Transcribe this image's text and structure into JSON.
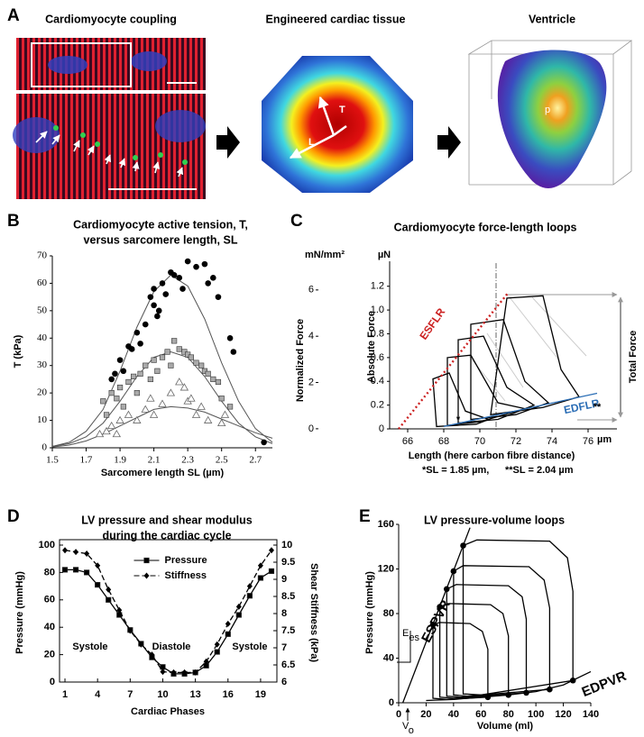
{
  "panel_a": {
    "label": "A",
    "titles": [
      "Cardiomyocyte coupling",
      "Engineered cardiac tissue",
      "Ventricle"
    ],
    "tissue_labels": [
      "T",
      "L"
    ],
    "ventricle_label": "p"
  },
  "chart_data": [
    {
      "label": "B",
      "type": "scatter",
      "title": [
        "Cardiomyocyte active tension, T,",
        "versus sarcomere length, SL"
      ],
      "xlabel": "Sarcomere length SL (µm)",
      "ylabel": "T (kPa)",
      "xlim": [
        1.5,
        2.8
      ],
      "ylim": [
        0,
        70
      ],
      "xticks": [
        1.5,
        1.7,
        1.9,
        2.1,
        2.3,
        2.5,
        2.7
      ],
      "yticks": [
        0,
        10,
        20,
        30,
        40,
        50,
        60,
        70
      ],
      "series": [
        {
          "marker": "circle",
          "color": "#000000",
          "x": [
            1.85,
            1.87,
            1.9,
            1.92,
            1.95,
            1.97,
            2.0,
            2.02,
            2.05,
            2.08,
            2.1,
            2.12,
            2.1,
            2.13,
            2.15,
            2.17,
            2.2,
            2.22,
            2.25,
            2.27,
            2.3,
            2.35,
            2.4,
            2.42,
            2.45,
            2.48,
            2.55,
            2.57,
            2.75
          ],
          "values": [
            25,
            27,
            32,
            28,
            37,
            36,
            42,
            38,
            45,
            55,
            52,
            48,
            58,
            50,
            60,
            56,
            64,
            63,
            62,
            58,
            68,
            66,
            67,
            60,
            62,
            55,
            40,
            35,
            2
          ]
        },
        {
          "marker": "square",
          "color": "#aaaaaa",
          "x": [
            1.8,
            1.82,
            1.85,
            1.88,
            1.9,
            1.92,
            1.95,
            1.98,
            2.0,
            2.02,
            2.05,
            2.08,
            2.1,
            2.12,
            2.15,
            2.18,
            2.2,
            2.22,
            2.25,
            2.28,
            2.3,
            2.32,
            2.35,
            2.38,
            2.4,
            2.42,
            2.45,
            2.48,
            2.5,
            2.55
          ],
          "values": [
            17,
            12,
            20,
            18,
            22,
            15,
            24,
            26,
            20,
            27,
            30,
            25,
            32,
            28,
            33,
            35,
            30,
            39,
            36,
            35,
            34,
            33,
            31,
            30,
            28,
            27,
            25,
            24,
            18,
            15
          ]
        },
        {
          "marker": "triangle",
          "color": "#666666",
          "x": [
            1.78,
            1.82,
            1.85,
            1.88,
            1.9,
            1.95,
            2.0,
            2.05,
            2.08,
            2.1,
            2.15,
            2.2,
            2.25,
            2.28,
            2.3,
            2.32,
            2.35,
            2.38,
            2.42,
            2.5,
            2.52
          ],
          "values": [
            5,
            6,
            8,
            5,
            10,
            12,
            10,
            14,
            18,
            12,
            16,
            20,
            24,
            22,
            17,
            18,
            12,
            15,
            10,
            9,
            12
          ]
        }
      ],
      "curves": [
        {
          "color": "#555555",
          "x": [
            1.5,
            1.6,
            1.7,
            1.8,
            1.9,
            2.0,
            2.1,
            2.2,
            2.3,
            2.4,
            2.5,
            2.6,
            2.7,
            2.8
          ],
          "values": [
            0.5,
            2,
            6,
            14,
            28,
            44,
            57,
            63,
            59,
            47,
            31,
            17,
            7,
            2
          ]
        },
        {
          "color": "#555555",
          "x": [
            1.5,
            1.6,
            1.7,
            1.8,
            1.9,
            2.0,
            2.1,
            2.2,
            2.3,
            2.4,
            2.5,
            2.6,
            2.7,
            2.8
          ],
          "values": [
            0.5,
            1.5,
            4,
            9,
            17,
            26,
            33,
            35,
            33,
            26,
            17,
            9,
            4,
            1.5
          ]
        },
        {
          "color": "#555555",
          "x": [
            1.5,
            1.6,
            1.7,
            1.8,
            1.9,
            2.0,
            2.1,
            2.2,
            2.3,
            2.4,
            2.5,
            2.6,
            2.7,
            2.8
          ],
          "values": [
            0.3,
            1,
            2.5,
            5,
            8,
            11,
            14,
            15,
            14.5,
            13,
            10.5,
            8,
            5.5,
            3.5
          ]
        }
      ]
    },
    {
      "label": "C",
      "type": "line",
      "title": "Cardiomyocyte force-length loops",
      "xlabel": "Length (here carbon fibre distance)",
      "xunit": "µm",
      "ylabel": "Absolute Force",
      "yunit": "µN",
      "y2label": "Normalized Force",
      "y2unit": "mN/mm²",
      "xlim": [
        65,
        78
      ],
      "ylim": [
        -0.03,
        1.41
      ],
      "y2lim": [
        -0.16,
        7.24
      ],
      "xticks": [
        66,
        68,
        70,
        72,
        74,
        76
      ],
      "yticks": [
        0,
        0.2,
        0.4,
        0.6,
        0.8,
        {
          "value": 1,
          "label": "1.0"
        },
        1.2
      ],
      "y2ticks": [
        0,
        2,
        4,
        6
      ],
      "series": [
        {
          "color": "#000000",
          "closed": true,
          "x": [
            67.6,
            67.4,
            68.3,
            69.2,
            70.5,
            69.8
          ],
          "values": [
            0.02,
            0.42,
            0.47,
            0.15,
            0.08,
            0.04
          ]
        },
        {
          "color": "#000000",
          "closed": true,
          "x": [
            68.2,
            68.2,
            69.5,
            71,
            72.5,
            70
          ],
          "values": [
            0.03,
            0.6,
            0.62,
            0.22,
            0.17,
            0.06
          ]
        },
        {
          "color": "#000000",
          "closed": true,
          "x": [
            68.8,
            68.8,
            70.2,
            71.5,
            73,
            71
          ],
          "values": [
            0.05,
            0.75,
            0.78,
            0.35,
            0.2,
            0.08
          ]
        },
        {
          "color": "#000000",
          "closed": true,
          "x": [
            69.5,
            69.5,
            71.3,
            72.5,
            73.8,
            72
          ],
          "values": [
            0.08,
            0.88,
            0.92,
            0.4,
            0.22,
            0.12
          ]
        },
        {
          "color": "#000000",
          "closed": true,
          "x": [
            70.6,
            71.5,
            73.5,
            74.5,
            75.5,
            73.5
          ],
          "values": [
            0.12,
            1.1,
            1.12,
            0.5,
            0.27,
            0.18
          ]
        },
        {
          "color": "#cc2222",
          "dash": "dot",
          "x": [
            65.5,
            71.6
          ],
          "values": [
            0,
            1.15
          ]
        },
        {
          "color": "#2a6db5",
          "x": [
            68,
            76.5
          ],
          "values": [
            0.02,
            0.3
          ]
        }
      ],
      "annotations": [
        "ESFLR",
        "EDFLR",
        "Total Force",
        "*",
        "**",
        "*SL = 1.85 µm,",
        "**SL = 2.04 µm"
      ]
    },
    {
      "label": "D",
      "type": "line",
      "title": [
        "LV pressure and shear modulus",
        "during the cardiac cycle"
      ],
      "xlabel": "Cardiac Phases",
      "ylabel": "Pressure (mmHg)",
      "y2label": "Shear Stiffness (kPa)",
      "xlim": [
        0.5,
        20.5
      ],
      "ylim": [
        0,
        100
      ],
      "y2lim": [
        6,
        10
      ],
      "xticks": [
        1,
        4,
        7,
        10,
        13,
        16,
        19
      ],
      "yticks": [
        0,
        20,
        40,
        60,
        80,
        100
      ],
      "y2ticks": [
        6,
        6.5,
        7,
        7.5,
        8,
        8.5,
        9,
        9.5,
        10
      ],
      "legend": "upper-center",
      "series": [
        {
          "name": "Pressure",
          "color": "#000000",
          "marker": "square",
          "x": [
            1,
            2,
            3,
            4,
            5,
            6,
            7,
            8,
            9,
            10,
            11,
            12,
            13,
            14,
            15,
            16,
            17,
            18,
            19,
            20
          ],
          "values": [
            82,
            82,
            80,
            71,
            60,
            49,
            38,
            28,
            18,
            11,
            6,
            6,
            7,
            12,
            22,
            35,
            49,
            63,
            76,
            81
          ]
        },
        {
          "name": "Stiffness",
          "color": "#000000",
          "marker": "diamond",
          "dash": "dash",
          "axis": "y2",
          "x": [
            1,
            2,
            3,
            4,
            5,
            6,
            7,
            8,
            9,
            10,
            11,
            12,
            13,
            14,
            15,
            16,
            17,
            18,
            19,
            20
          ],
          "values": [
            9.85,
            9.8,
            9.75,
            9.4,
            8.7,
            8.1,
            7.5,
            7.1,
            6.8,
            6.3,
            6.28,
            6.28,
            6.28,
            6.6,
            7.1,
            7.7,
            8.2,
            8.8,
            9.4,
            9.85
          ]
        }
      ],
      "annotations": [
        "Systole",
        "Diastole",
        "Systole"
      ]
    },
    {
      "label": "E",
      "type": "line",
      "title": "LV pressure-volume loops",
      "xlabel": "Volume (ml)",
      "ylabel": "Pressure (mmHg)",
      "xlim": [
        0,
        140
      ],
      "ylim": [
        0,
        160
      ],
      "xticks": [
        0,
        20,
        40,
        60,
        80,
        100,
        120,
        140
      ],
      "yticks": [
        0,
        40,
        80,
        120,
        160
      ],
      "series": [
        {
          "color": "#000000",
          "closed": true,
          "x": [
            25,
            30,
            52,
            61,
            65,
            65,
            35,
            25
          ],
          "values": [
            70,
            72,
            71,
            64,
            48,
            5,
            3,
            4
          ]
        },
        {
          "color": "#000000",
          "closed": true,
          "x": [
            30,
            36,
            67,
            76,
            80,
            80,
            40,
            30
          ],
          "values": [
            86,
            89,
            88,
            80,
            60,
            7,
            4,
            5
          ]
        },
        {
          "color": "#000000",
          "closed": true,
          "x": [
            35,
            42,
            80,
            90,
            93,
            93,
            45,
            35
          ],
          "values": [
            102,
            106,
            105,
            95,
            75,
            9,
            5,
            6
          ]
        },
        {
          "color": "#000000",
          "closed": true,
          "x": [
            40,
            47,
            95,
            106,
            110,
            110,
            50,
            40
          ],
          "values": [
            118,
            123,
            122,
            110,
            85,
            12,
            6,
            7
          ]
        },
        {
          "color": "#000000",
          "closed": true,
          "x": [
            47,
            57,
            110,
            123,
            127,
            127,
            60,
            47
          ],
          "values": [
            141,
            146,
            145,
            130,
            100,
            20,
            7,
            8
          ]
        },
        {
          "color": "#000000",
          "x": [
            3,
            52
          ],
          "values": [
            0,
            157
          ]
        },
        {
          "color": "#000000",
          "x": [
            20,
            40,
            60,
            80,
            100,
            120,
            140
          ],
          "values": [
            2,
            3,
            5,
            7,
            10,
            16,
            28
          ]
        },
        {
          "color": "#000000",
          "marker": "circle",
          "line": false,
          "x": [
            25,
            30,
            35,
            40,
            47
          ],
          "values": [
            70,
            86,
            102,
            118,
            141
          ]
        },
        {
          "color": "#000000",
          "marker": "circle",
          "line": false,
          "x": [
            65,
            80,
            93,
            110,
            127
          ],
          "values": [
            5,
            7,
            9,
            12,
            20
          ]
        }
      ],
      "annotations": [
        "ESPVR",
        "EDPVR"
      ],
      "slope_label": {
        "main": "E",
        "sub": "es"
      },
      "intercept_label": {
        "main": "V",
        "sub": "o"
      }
    }
  ]
}
